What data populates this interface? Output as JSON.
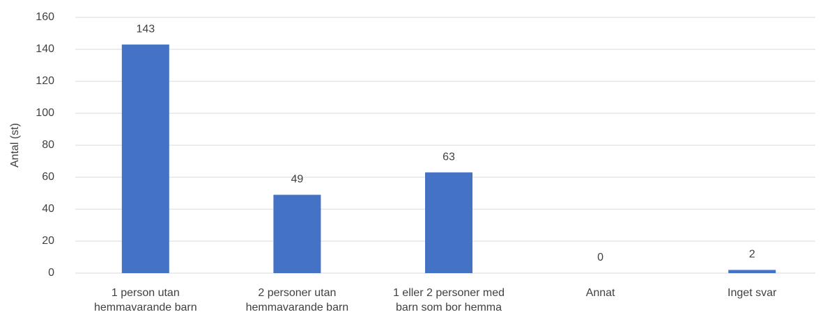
{
  "chart_data": {
    "type": "bar",
    "y_label": "Antal (st)",
    "categories": [
      "1 person utan hemmavarande barn",
      "2 personer utan hemmavarande barn",
      "1 eller 2 personer med barn som bor hemma",
      "Annat",
      "Inget svar"
    ],
    "values": [
      143,
      49,
      63,
      0,
      2
    ],
    "color": "#4472c4",
    "ylim": [
      0,
      160
    ],
    "yticks": [
      0,
      20,
      40,
      60,
      80,
      100,
      120,
      140,
      160
    ],
    "grid": true
  }
}
